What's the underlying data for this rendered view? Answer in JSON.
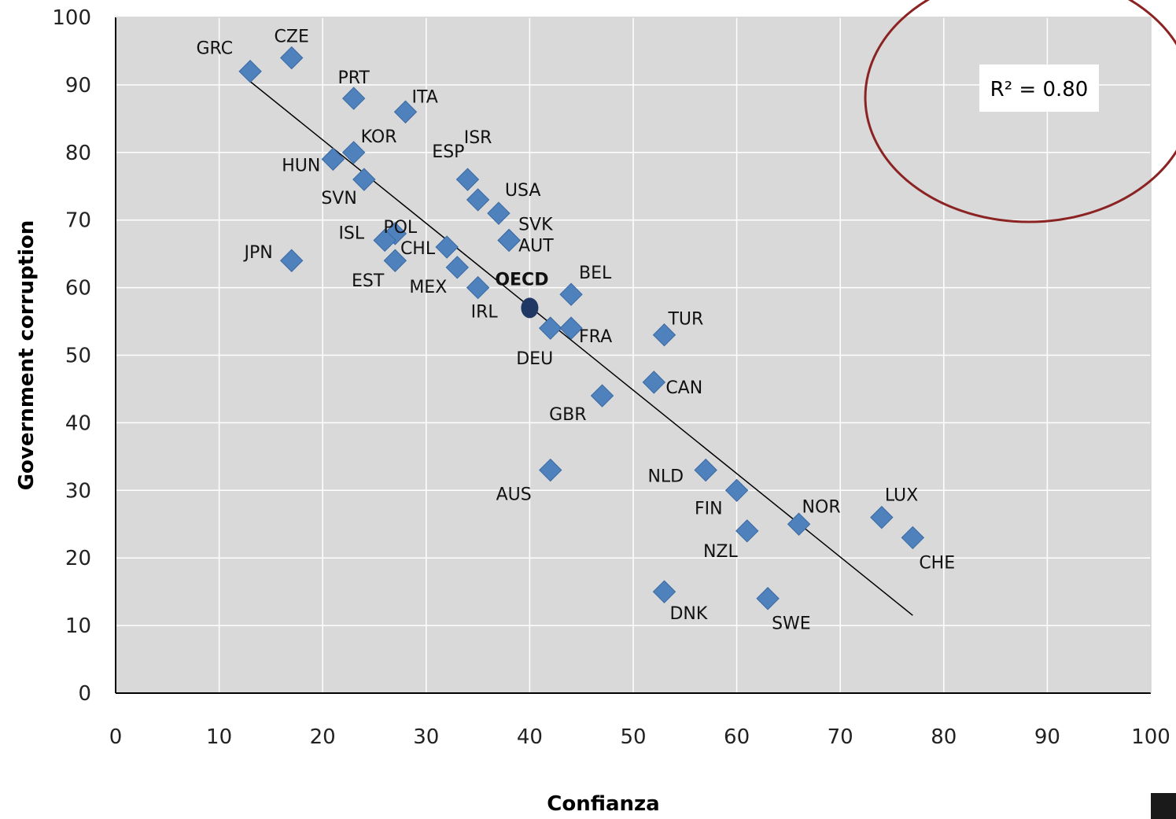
{
  "chart_data": {
    "type": "scatter",
    "xlabel": "Confianza",
    "ylabel": "Government corruption",
    "xlim": [
      0,
      100
    ],
    "ylim": [
      0,
      100
    ],
    "xticks": [
      0,
      10,
      20,
      30,
      40,
      50,
      60,
      70,
      80,
      90,
      100
    ],
    "yticks": [
      0,
      10,
      20,
      30,
      40,
      50,
      60,
      70,
      80,
      90,
      100
    ],
    "grid": true,
    "annotation": "R² = 0.80",
    "trendline": {
      "x": [
        13,
        77
      ],
      "y": [
        90.5,
        11.5
      ]
    },
    "colors": {
      "plot_background": "#d9d9d9",
      "marker": "#4f81bd",
      "oecd_marker": "#1f3864",
      "circle": "#8b2323",
      "trendline": "#000000"
    },
    "points": [
      {
        "label": "GRC",
        "x": 13,
        "y": 92
      },
      {
        "label": "CZE",
        "x": 17,
        "y": 94
      },
      {
        "label": "PRT",
        "x": 23,
        "y": 88
      },
      {
        "label": "ITA",
        "x": 28,
        "y": 86
      },
      {
        "label": "KOR",
        "x": 23,
        "y": 80
      },
      {
        "label": "HUN",
        "x": 21,
        "y": 79
      },
      {
        "label": "SVN",
        "x": 24,
        "y": 76
      },
      {
        "label": "ESP",
        "x": 34,
        "y": 76
      },
      {
        "label": "ISR",
        "x": 35,
        "y": 73
      },
      {
        "label": "USA",
        "x": 37,
        "y": 71
      },
      {
        "label": "SVK",
        "x": 38,
        "y": 67
      },
      {
        "label": "AUT",
        "x": 38,
        "y": 67
      },
      {
        "label": "POL",
        "x": 27,
        "y": 68
      },
      {
        "label": "ISL",
        "x": 26,
        "y": 67
      },
      {
        "label": "JPN",
        "x": 17,
        "y": 64
      },
      {
        "label": "EST",
        "x": 27,
        "y": 64
      },
      {
        "label": "CHL",
        "x": 32,
        "y": 66
      },
      {
        "label": "MEX",
        "x": 33,
        "y": 63
      },
      {
        "label": "IRL",
        "x": 35,
        "y": 60
      },
      {
        "label": "OECD",
        "x": 40,
        "y": 57
      },
      {
        "label": "BEL",
        "x": 44,
        "y": 59
      },
      {
        "label": "DEU",
        "x": 42,
        "y": 54
      },
      {
        "label": "FRA",
        "x": 44,
        "y": 54
      },
      {
        "label": "TUR",
        "x": 53,
        "y": 53
      },
      {
        "label": "CAN",
        "x": 52,
        "y": 46
      },
      {
        "label": "GBR",
        "x": 47,
        "y": 44
      },
      {
        "label": "AUS",
        "x": 42,
        "y": 33
      },
      {
        "label": "NLD",
        "x": 57,
        "y": 33
      },
      {
        "label": "FIN",
        "x": 60,
        "y": 30
      },
      {
        "label": "NZL",
        "x": 61,
        "y": 24
      },
      {
        "label": "NOR",
        "x": 66,
        "y": 25
      },
      {
        "label": "LUX",
        "x": 74,
        "y": 26
      },
      {
        "label": "CHE",
        "x": 77,
        "y": 23
      },
      {
        "label": "DNK",
        "x": 53,
        "y": 15
      },
      {
        "label": "SWE",
        "x": 63,
        "y": 14
      }
    ]
  }
}
